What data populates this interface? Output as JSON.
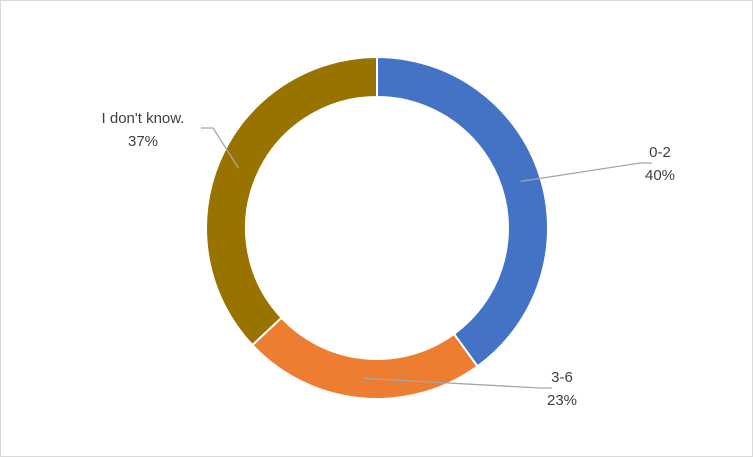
{
  "chart_data": {
    "type": "donut",
    "categories": [
      "0-2",
      "3-6",
      "I don't know."
    ],
    "values": [
      40,
      23,
      37
    ],
    "value_labels": [
      "40%",
      "23%",
      "37%"
    ],
    "colors": [
      "#4472c4",
      "#ed7d31",
      "#997300"
    ]
  }
}
